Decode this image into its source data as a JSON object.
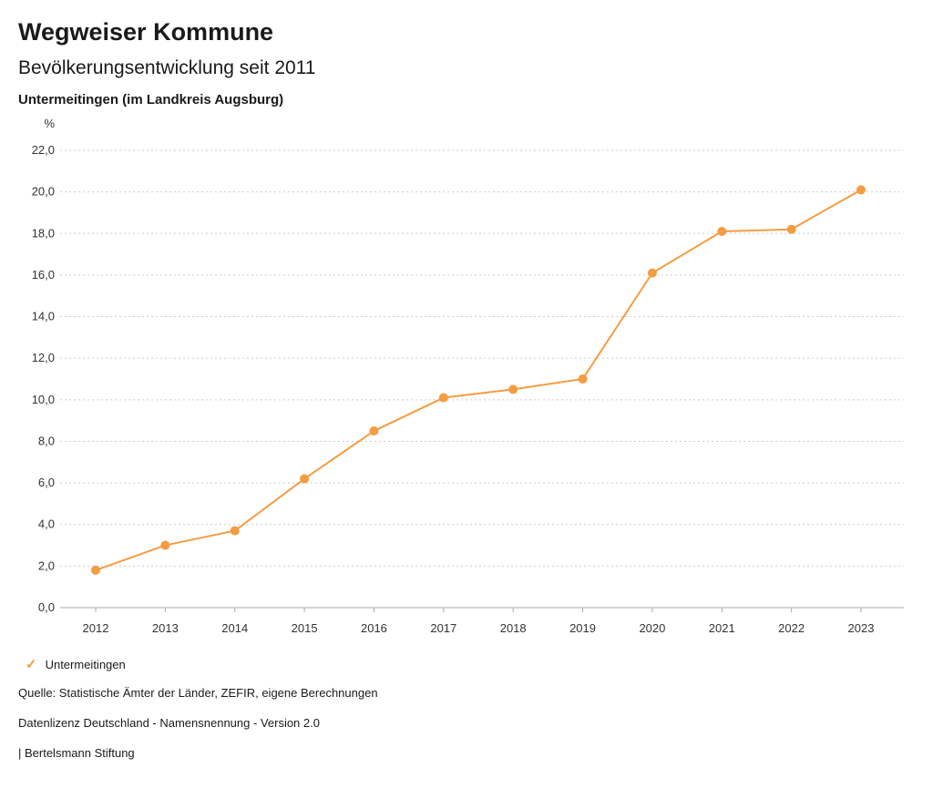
{
  "header": {
    "title": "Wegweiser Kommune",
    "subtitle": "Bevölkerungsentwicklung seit 2011",
    "region": "Untermeitingen (im Landkreis Augsburg)"
  },
  "chart_data": {
    "type": "line",
    "title": "Bevölkerungsentwicklung seit 2011",
    "unit_label": "%",
    "x": [
      2012,
      2013,
      2014,
      2015,
      2016,
      2017,
      2018,
      2019,
      2020,
      2021,
      2022,
      2023
    ],
    "series": [
      {
        "name": "Untermeitingen",
        "values": [
          1.8,
          3.0,
          3.7,
          6.2,
          8.5,
          10.1,
          10.5,
          11.0,
          16.1,
          18.1,
          18.2,
          20.1
        ],
        "color": "#F59C41"
      }
    ],
    "ylim": [
      0,
      22
    ],
    "ytick_step": 2,
    "ytick_format": "comma-decimal-1",
    "grid": "horizontal-dotted",
    "legend_position": "bottom-left",
    "colors": {
      "line": "#F59C41",
      "grid": "#cccccc",
      "axis": "#aaaaaa",
      "text": "#333333"
    }
  },
  "legend": {
    "items": [
      {
        "icon": "check-icon",
        "label": "Untermeitingen",
        "color": "#F59C41"
      }
    ]
  },
  "footer": {
    "source": "Quelle: Statistische Ämter der Länder, ZEFIR, eigene Berechnungen",
    "license": "Datenlizenz Deutschland - Namensnennung - Version 2.0",
    "attribution": "| Bertelsmann Stiftung"
  }
}
